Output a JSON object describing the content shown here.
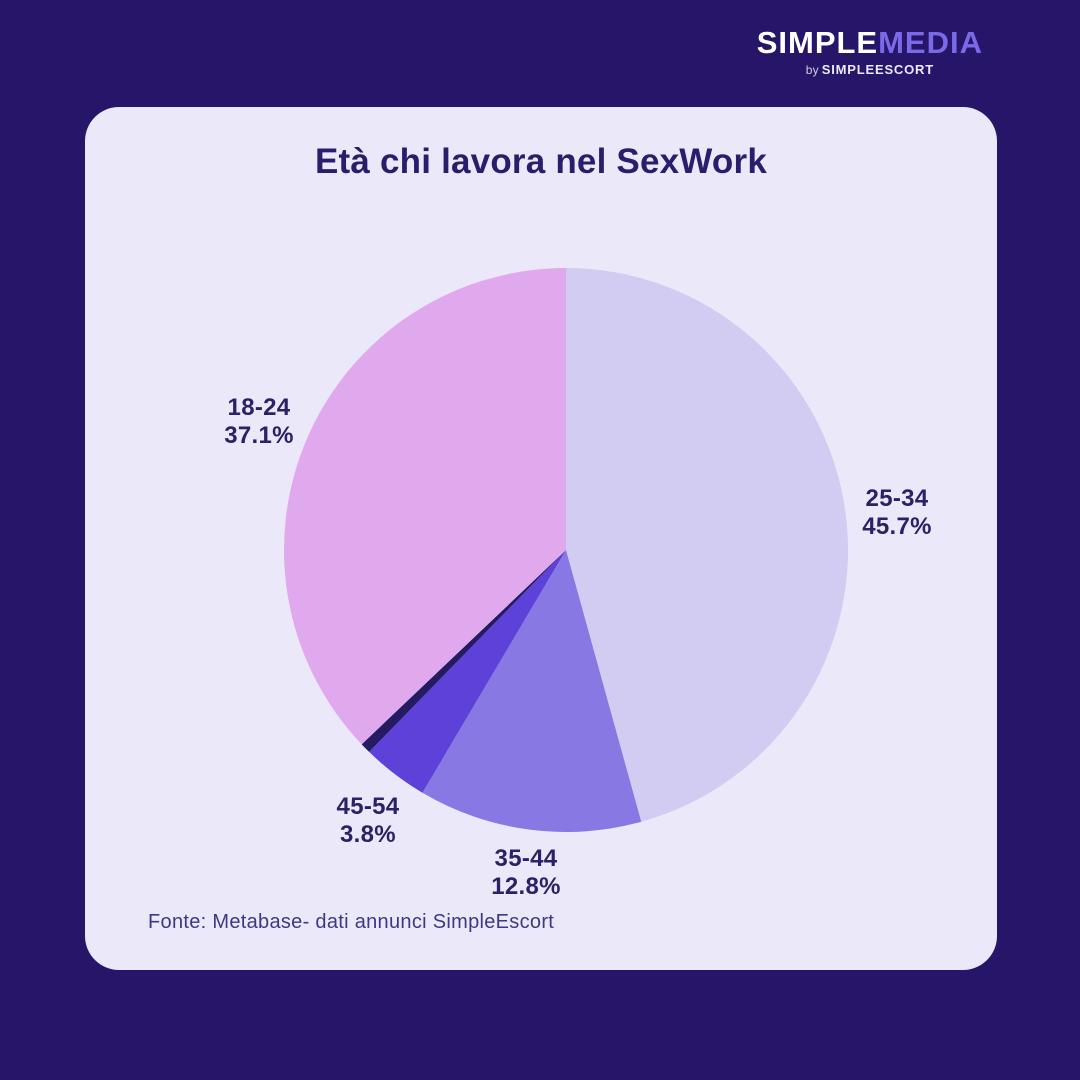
{
  "logo": {
    "part1": "SIMPLE",
    "part2": "MEDIA",
    "by_word": "by",
    "by_brand": "SIMPLEESCORT"
  },
  "title": "Età chi lavora nel SexWork",
  "source": "Fonte: Metabase- dati annunci SimpleEscort",
  "colors": {
    "background": "#261568",
    "card": "#ebe9f9",
    "title_text": "#2b1d6b",
    "label_text": "#2b2167",
    "source_text": "#3e3884",
    "logo_white": "#ffffff",
    "logo_accent": "#7b6ae8"
  },
  "chart_data": {
    "type": "pie",
    "title": "Età chi lavora nel SexWork",
    "start_angle_deg": 0,
    "direction": "clockwise",
    "legend": "none",
    "labels_position": "outside",
    "slices": [
      {
        "label": "25-34",
        "value": 45.7,
        "pct_label": "45.7%",
        "color": "#d2cbf2"
      },
      {
        "label": "35-44",
        "value": 12.8,
        "pct_label": "12.8%",
        "color": "#8778e4"
      },
      {
        "label": "45-54",
        "value": 3.8,
        "pct_label": "3.8%",
        "color": "#5d41d9"
      },
      {
        "label": "",
        "value": 0.6,
        "pct_label": "",
        "color": "#241b63"
      },
      {
        "label": "18-24",
        "value": 37.1,
        "pct_label": "37.1%",
        "color": "#e1a9ed"
      }
    ]
  }
}
